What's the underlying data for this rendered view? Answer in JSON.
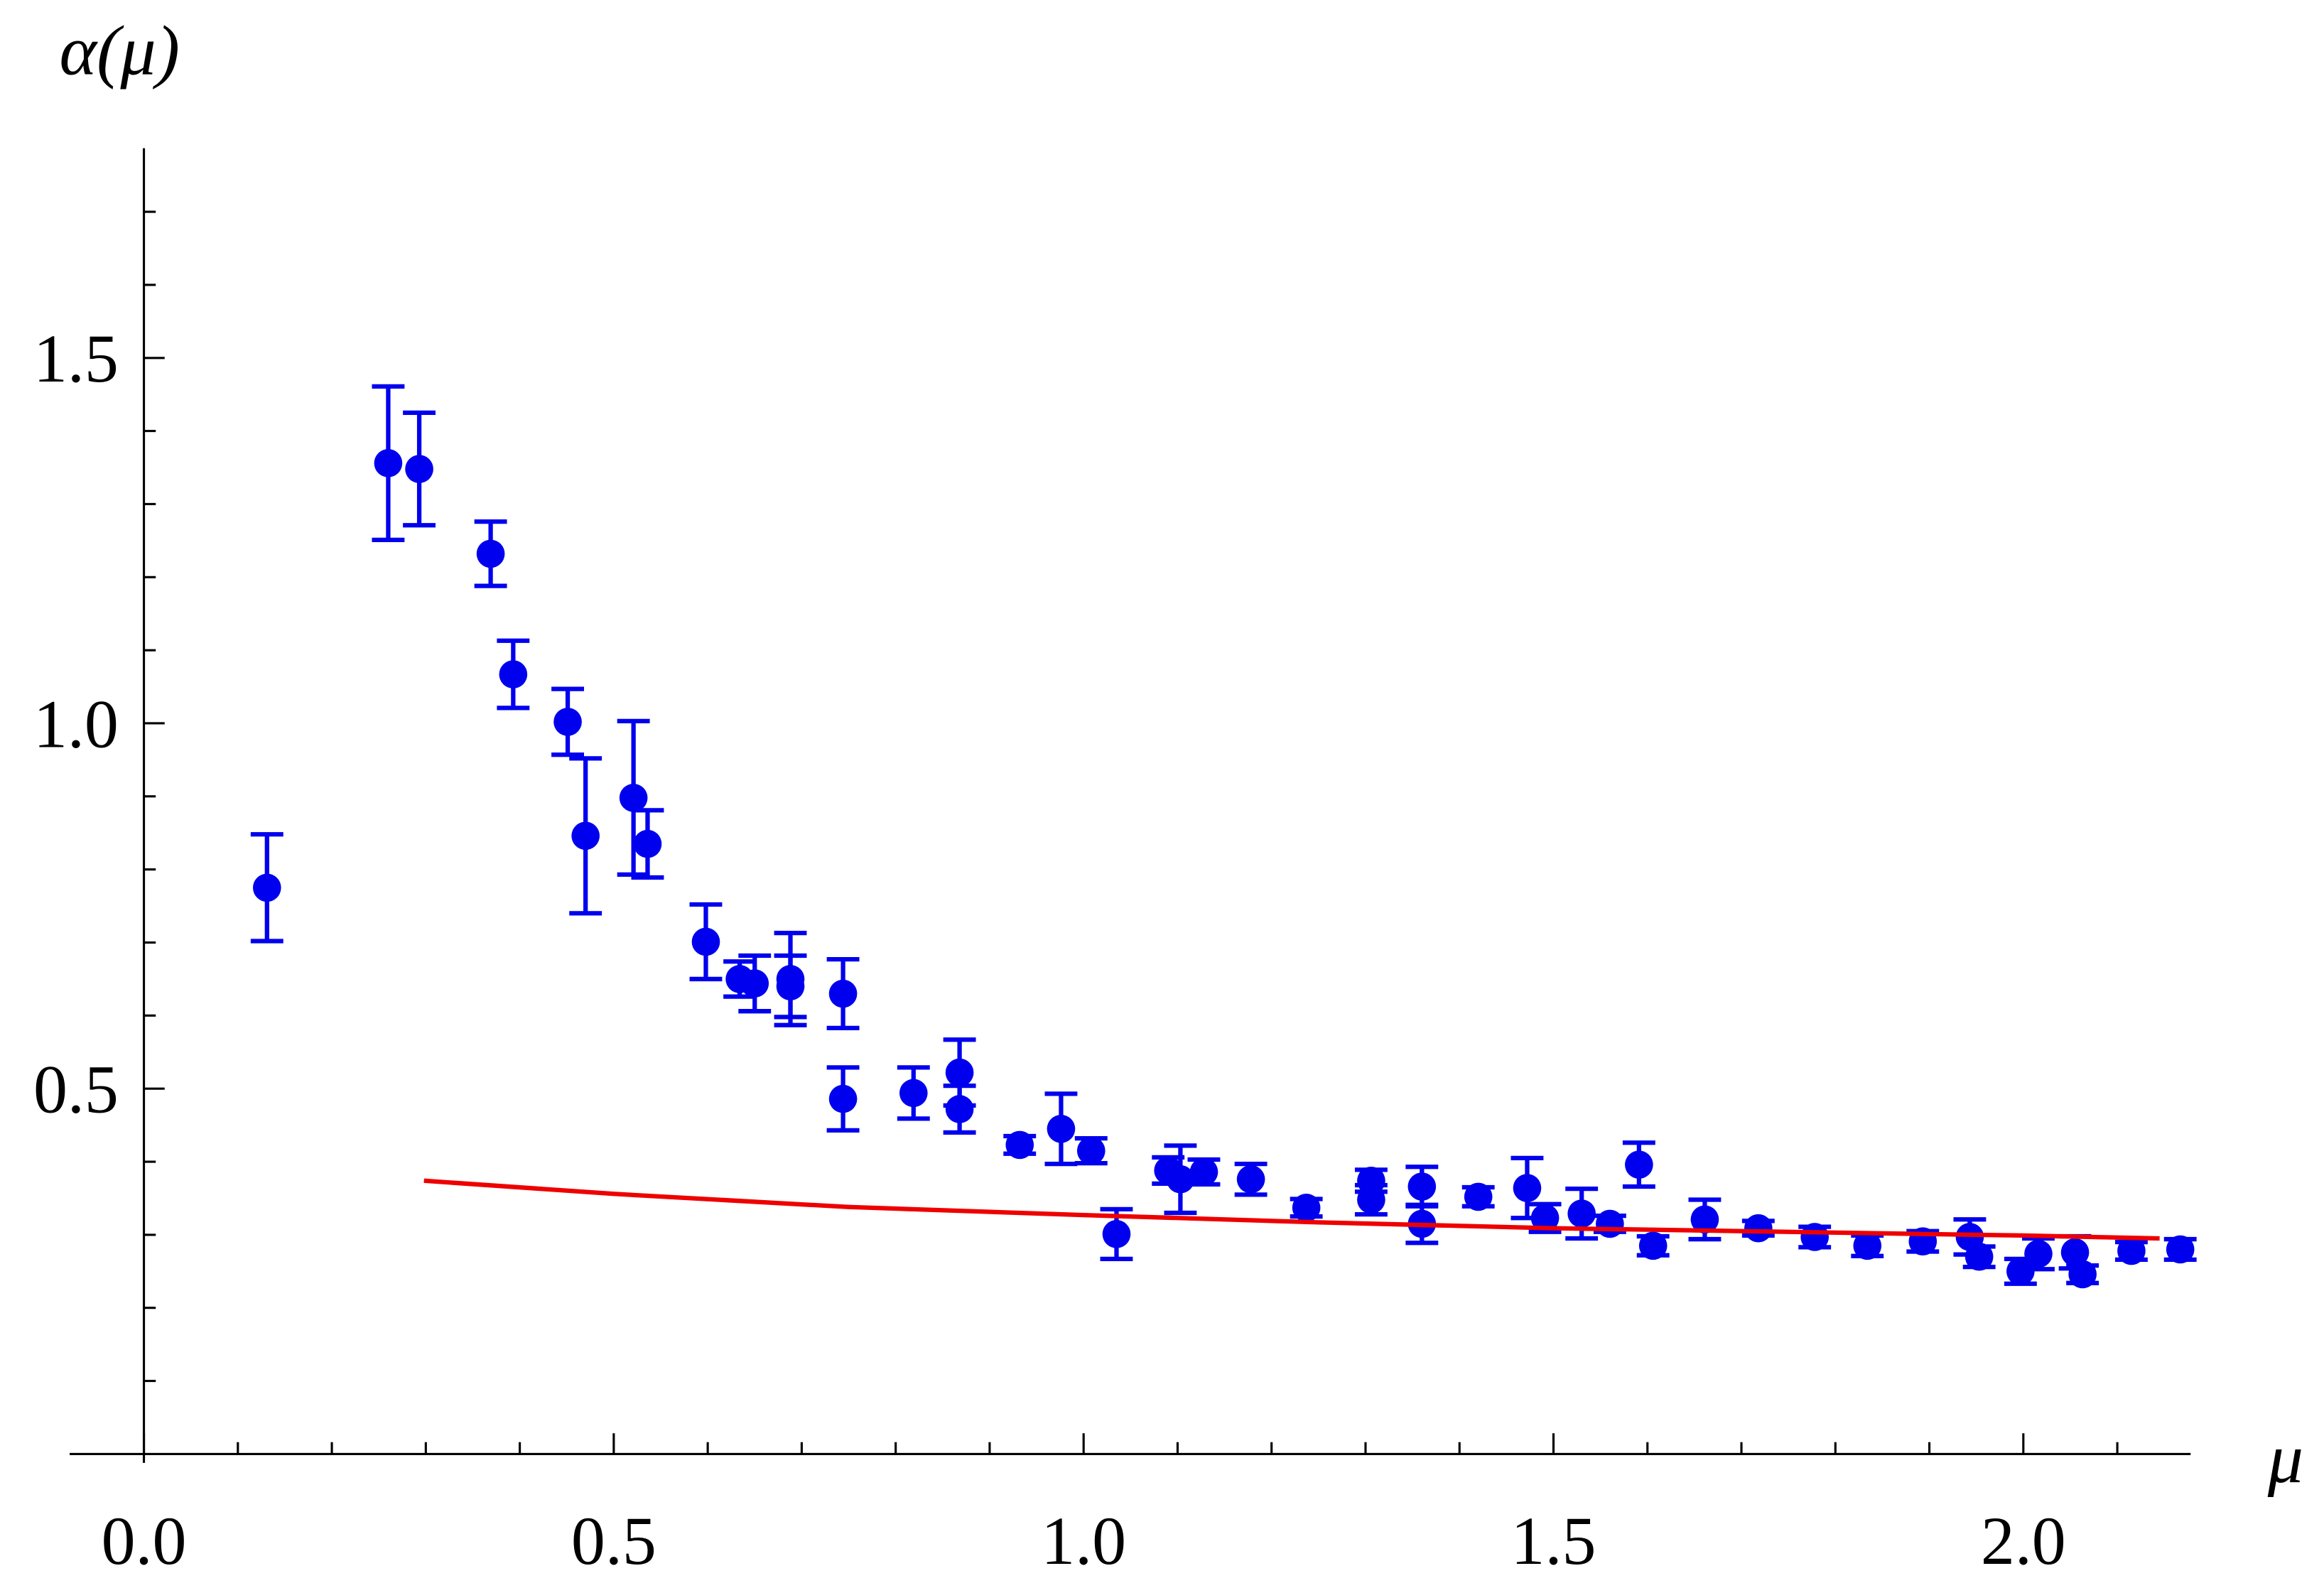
{
  "chart_data": {
    "type": "scatter",
    "y_label": "α(μ)",
    "x_label": "μ",
    "xlim": [
      -0.079,
      2.178
    ],
    "ylim": [
      0,
      1.787
    ],
    "xticks": [
      {
        "value": 0,
        "label": "0.0"
      },
      0.5,
      {
        "value": 1,
        "label": "1.0"
      },
      1.5,
      {
        "value": 2,
        "label": "2.0"
      }
    ],
    "yticks": [
      0.5,
      {
        "value": 1,
        "label": "1.0"
      },
      1.5
    ],
    "xminorticks": [
      0.1,
      0.2,
      0.3,
      0.4,
      0.6,
      0.7,
      0.8,
      0.9,
      1.1,
      1.2,
      1.3,
      1.4,
      1.6,
      1.7,
      1.8,
      1.9,
      2.1
    ],
    "yminorticks": [
      0.1,
      0.2,
      0.3,
      0.4,
      0.6,
      0.7,
      0.8,
      0.9,
      1.1,
      1.2,
      1.3,
      1.4,
      1.6,
      1.7
    ],
    "series": [
      {
        "type": "errorbar",
        "color": "#0000ee",
        "x": [
          0.131,
          0.26,
          0.293,
          0.369,
          0.393,
          0.451,
          0.47,
          0.521,
          0.536,
          0.598,
          0.634,
          0.65,
          0.688,
          0.688,
          0.744,
          0.744,
          0.819,
          0.868,
          0.868,
          0.932,
          0.976,
          1.008,
          1.035,
          1.09,
          1.103,
          1.128,
          1.178,
          1.237,
          1.306,
          1.306,
          1.36,
          1.36,
          1.42,
          1.472,
          1.491,
          1.53,
          1.56,
          1.591,
          1.606,
          1.661,
          1.718,
          1.778,
          1.834,
          1.893,
          1.943,
          1.953,
          1.997,
          2.016,
          2.055,
          2.063,
          2.115,
          2.167
        ],
        "values": [
          0.775,
          1.356,
          1.348,
          1.232,
          1.067,
          1.002,
          0.846,
          0.898,
          0.835,
          0.701,
          0.65,
          0.644,
          0.65,
          0.64,
          0.63,
          0.486,
          0.494,
          0.522,
          0.472,
          0.423,
          0.445,
          0.415,
          0.301,
          0.388,
          0.376,
          0.386,
          0.376,
          0.337,
          0.374,
          0.348,
          0.366,
          0.315,
          0.352,
          0.364,
          0.323,
          0.329,
          0.315,
          0.396,
          0.285,
          0.321,
          0.309,
          0.297,
          0.285,
          0.291,
          0.297,
          0.27,
          0.25,
          0.274,
          0.276,
          0.246,
          0.278,
          0.28
        ],
        "errors": [
          0.073,
          0.105,
          0.077,
          0.044,
          0.046,
          0.045,
          0.106,
          0.105,
          0.046,
          0.051,
          0.024,
          0.038,
          0.063,
          0.042,
          0.047,
          0.043,
          0.035,
          0.045,
          0.032,
          0.012,
          0.048,
          0.017,
          0.034,
          0.018,
          0.046,
          0.017,
          0.021,
          0.012,
          0.015,
          0.02,
          0.027,
          0.026,
          0.013,
          0.041,
          0.019,
          0.034,
          0.011,
          0.03,
          0.013,
          0.027,
          0.01,
          0.014,
          0.014,
          0.014,
          0.024,
          0.014,
          0.017,
          0.021,
          0.022,
          0.012,
          0.012,
          0.014
        ]
      },
      {
        "type": "line",
        "color": "#ee0000",
        "x": [
          0.298,
          0.5,
          0.75,
          1.0,
          1.25,
          1.5,
          1.75,
          2.0,
          2.145
        ],
        "values": [
          0.374,
          0.356,
          0.338,
          0.327,
          0.317,
          0.309,
          0.304,
          0.299,
          0.295
        ]
      }
    ]
  }
}
